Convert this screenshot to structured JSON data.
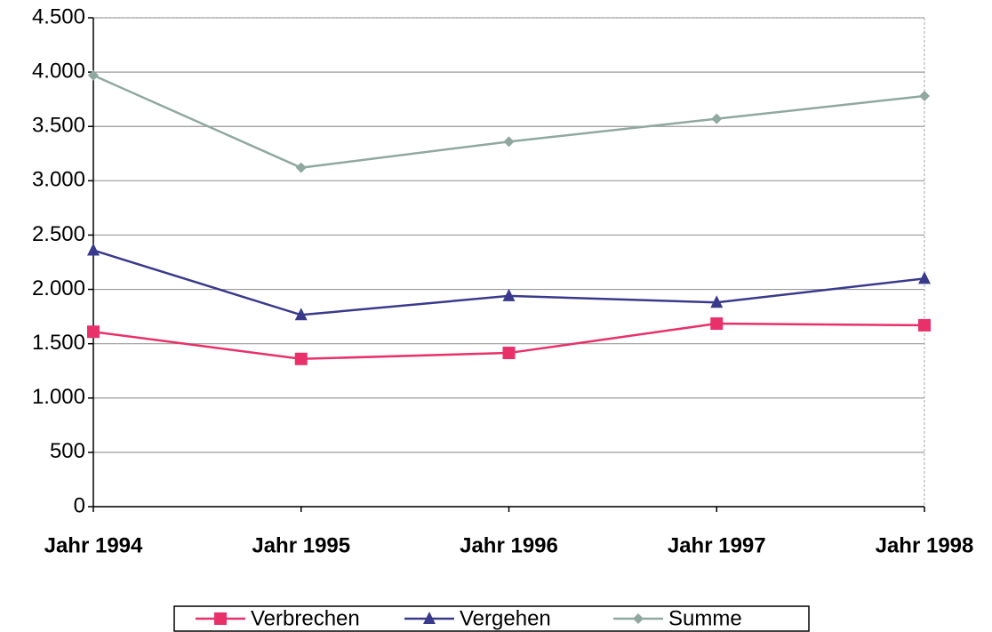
{
  "chart_data": {
    "type": "line",
    "categories": [
      "Jahr 1994",
      "Jahr 1995",
      "Jahr 1996",
      "Jahr 1997",
      "Jahr 1998"
    ],
    "series": [
      {
        "name": "Verbrechen",
        "color": "#e8306a",
        "marker": "square",
        "values": [
          1610,
          1360,
          1415,
          1685,
          1670
        ]
      },
      {
        "name": "Vergehen",
        "color": "#3a3a8c",
        "marker": "triangle",
        "values": [
          2360,
          1765,
          1940,
          1880,
          2100
        ]
      },
      {
        "name": "Summe",
        "color": "#8fa8a0",
        "marker": "diamond",
        "values": [
          3970,
          3120,
          3360,
          3570,
          3780
        ]
      }
    ],
    "ylim": [
      0,
      4500
    ],
    "yticks": [
      0,
      500,
      {
        "value": 1000,
        "label": "1.000"
      },
      {
        "value": 1500,
        "label": "1.500"
      },
      {
        "value": 2000,
        "label": "2.000"
      },
      {
        "value": 2500,
        "label": "2.500"
      },
      {
        "value": 3000,
        "label": "3.000"
      },
      {
        "value": 3500,
        "label": "3.500"
      },
      {
        "value": 4000,
        "label": "4.000"
      },
      {
        "value": 4500,
        "label": "4.500"
      }
    ],
    "grid": true,
    "legend": "bottom"
  }
}
